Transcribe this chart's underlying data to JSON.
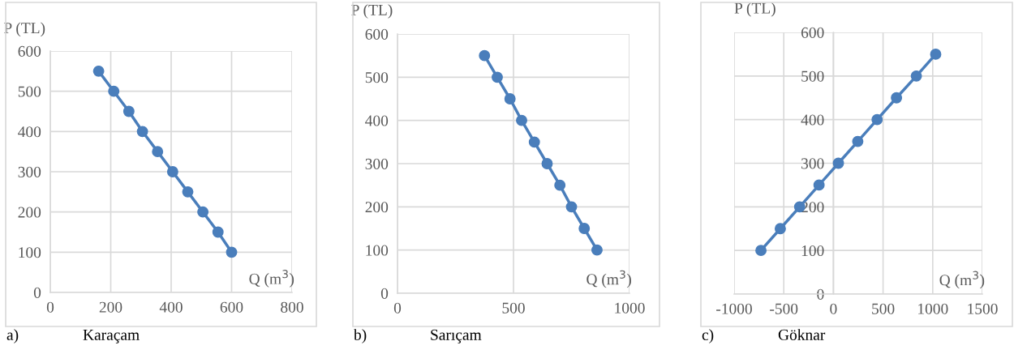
{
  "chart_data": [
    {
      "type": "line",
      "title": "Karaçam",
      "annotations": [
        "a)"
      ],
      "xlabel": "Q (m$^{3}$)",
      "ylabel": "P (TL)",
      "marker": "circle",
      "grid": true,
      "x": [
        160,
        210,
        260,
        305,
        355,
        405,
        455,
        505,
        555,
        600
      ],
      "series": [
        {
          "color": "#4a7ebb",
          "values": [
            550,
            500,
            450,
            400,
            350,
            300,
            250,
            200,
            150,
            100
          ]
        }
      ],
      "xlim": [
        0,
        800
      ],
      "xticks": [
        0,
        200,
        400,
        600,
        800
      ],
      "ylim": [
        0,
        600
      ],
      "yticks": [
        0,
        100,
        200,
        300,
        400,
        500,
        600
      ]
    },
    {
      "type": "line",
      "title": "Sarıçam",
      "annotations": [
        "b)"
      ],
      "xlabel": "Q (m$^{3}$)",
      "ylabel": "P (TL)",
      "marker": "circle",
      "grid": true,
      "x": [
        375,
        430,
        485,
        535,
        590,
        645,
        700,
        750,
        805,
        860
      ],
      "series": [
        {
          "color": "#4a7ebb",
          "values": [
            550,
            500,
            450,
            400,
            350,
            300,
            250,
            200,
            150,
            100
          ]
        }
      ],
      "xlim": [
        0,
        1000
      ],
      "xticks": [
        0,
        500,
        1000
      ],
      "ylim": [
        0,
        600
      ],
      "yticks": [
        0,
        100,
        200,
        300,
        400,
        500,
        600
      ]
    },
    {
      "type": "line",
      "title": "Göknar",
      "annotations": [
        "c)"
      ],
      "xlabel": "Q (m$^{3}$)",
      "ylabel": "P (TL)",
      "marker": "circle",
      "grid": true,
      "x": [
        -730,
        -535,
        -340,
        -145,
        50,
        245,
        440,
        635,
        835,
        1030
      ],
      "series": [
        {
          "color": "#4a7ebb",
          "values": [
            100,
            150,
            200,
            250,
            300,
            350,
            400,
            450,
            500,
            550
          ]
        }
      ],
      "xlim": [
        -1000,
        1500
      ],
      "xticks": [
        -1000,
        -500,
        0,
        500,
        1000,
        1500
      ],
      "ylim": [
        0,
        600
      ],
      "yticks": [
        0,
        100,
        200,
        300,
        400,
        500,
        600
      ]
    }
  ]
}
